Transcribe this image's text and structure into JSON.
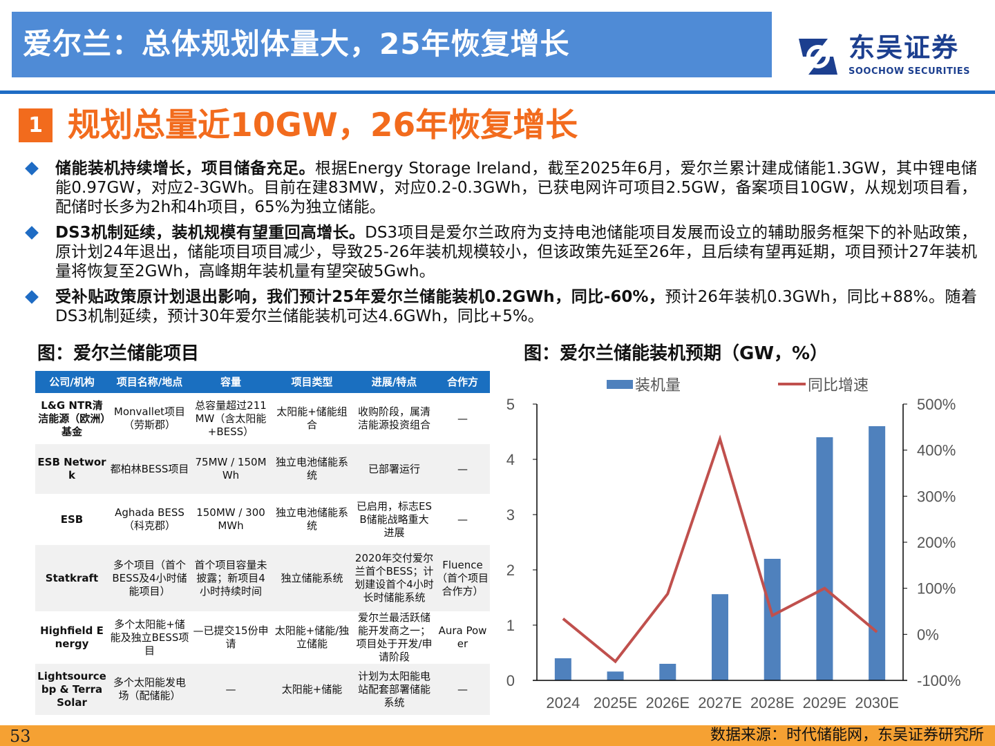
{
  "header": {
    "title": "爱尔兰：总体规划体量大，25年恢复增长",
    "logo_cn": "东吴证券",
    "logo_en": "SOOCHOW SECURITIES",
    "bg_color": "#4f8bd6"
  },
  "section": {
    "number": "1",
    "title": "规划总量近10GW，26年恢复增长",
    "accent_color": "#f26b1d"
  },
  "bullets": [
    {
      "bold": "储能装机持续增长，项目储备充足。",
      "text": "根据Energy Storage Ireland，截至2025年6月，爱尔兰累计建成储能1.3GW，其中锂电储能0.97GW，对应2-3GWh。目前在建83MW，对应0.2-0.3GWh，已获电网许可项目2.5GW，备案项目10GW，从规划项目看，配储时长多为2h和4h项目，65%为独立储能。"
    },
    {
      "bold": "DS3机制延续，装机规模有望重回高增长。",
      "text": "DS3项目是爱尔兰政府为支持电池储能项目发展而设立的辅助服务框架下的补贴政策，原计划24年退出，储能项目项目减少，导致25-26年装机规模较小，但该政策先延至26年，且后续有望再延期，项目预计27年装机量将恢复至2GWh，高峰期年装机量有望突破5Gwh。"
    },
    {
      "bold": "受补贴政策原计划退出影响，我们预计25年爱尔兰储能装机0.2GWh，同比-60%，",
      "text": "预计26年装机0.3GWh，同比+88%。随着DS3机制延续，预计30年爱尔兰储能装机可达4.6GWh，同比+5%。"
    }
  ],
  "table": {
    "title": "图：爱尔兰储能项目",
    "headers": [
      "公司/机构",
      "项目名称/地点",
      "容量",
      "项目类型",
      "进展/特点",
      "合作方"
    ],
    "rows": [
      [
        "L&G NTR清洁能源（欧洲）基金",
        "Monvallet项目（劳斯郡）",
        "总容量超过211MW（含太阳能+BESS）",
        "太阳能+储能组合",
        "收购阶段，属清洁能源投资组合",
        "—"
      ],
      [
        "ESB Network",
        "都柏林BESS项目",
        "75MW / 150MWh",
        "独立电池储能系统",
        "已部署运行",
        "—"
      ],
      [
        "ESB",
        "Aghada BESS（科克郡）",
        "150MW / 300MWh",
        "独立电池储能系统",
        "已启用，标志ESB储能战略重大进展",
        "—"
      ],
      [
        "Statkraft",
        "多个项目（首个BESS及4小时储能项目）",
        "首个项目容量未披露；新项目4小时持续时间",
        "独立储能系统",
        "2020年交付爱尔兰首个BESS；计划建设首个4小时长时储能系统",
        "Fluence（首个项目合作方）"
      ],
      [
        "Highfield Energy",
        "多个太阳能+储能及独立BESS项目",
        "—已提交15份申请",
        "太阳能+储能/独立储能",
        "爱尔兰最活跃储能开发商之一；项目处于开发/申请阶段",
        "Aura Power"
      ],
      [
        "Lightsource bp & Terra Solar",
        "多个太阳能发电场（配储能）",
        "—",
        "太阳能+储能",
        "计划为太阳能电站配套部署储能系统",
        "—"
      ]
    ]
  },
  "chart_data": {
    "title": "图：爱尔兰储能装机预期（GW，%）",
    "type": "bar+line",
    "categories": [
      "2024",
      "2025E",
      "2026E",
      "2027E",
      "2028E",
      "2029E",
      "2030E"
    ],
    "series": [
      {
        "name": "装机量",
        "type": "bar",
        "axis": "left",
        "color": "#4f81bd",
        "values": [
          0.4,
          0.16,
          0.3,
          1.56,
          2.2,
          4.4,
          4.6
        ]
      },
      {
        "name": "同比增速",
        "type": "line",
        "axis": "right",
        "color": "#c0504d",
        "values": [
          34,
          -59,
          88,
          424,
          41,
          100,
          5
        ]
      }
    ],
    "ylim_left": [
      0,
      5
    ],
    "yticks_left": [
      "0",
      "1",
      "2",
      "3",
      "4",
      "5"
    ],
    "ylim_right": [
      -100,
      500
    ],
    "yticks_right": [
      "-100%",
      "0%",
      "100%",
      "200%",
      "300%",
      "400%",
      "500%"
    ],
    "legend": "top",
    "grid": false
  },
  "footer": {
    "page": "53",
    "source": "数据来源：时代储能网，东吴证券研究所"
  }
}
